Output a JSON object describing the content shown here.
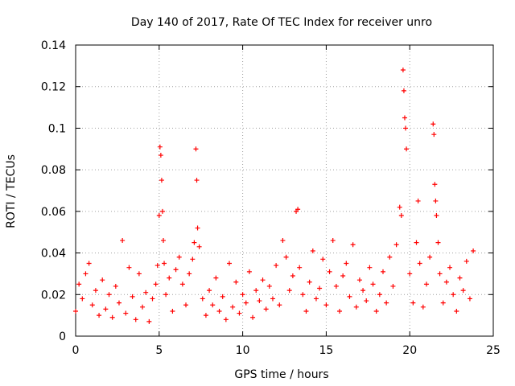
{
  "chart_data": {
    "type": "scatter",
    "title": "Day 140 of 2017, Rate Of TEC Index for receiver unro",
    "xlabel": "GPS time / hours",
    "ylabel": "ROTI / TECUs",
    "xlim": [
      0,
      25
    ],
    "ylim": [
      0,
      0.14
    ],
    "xticks": [
      0,
      5,
      10,
      15,
      20,
      25
    ],
    "xtick_labels": [
      "0",
      "5",
      "10",
      "15",
      "20",
      "25"
    ],
    "yticks": [
      0,
      0.02,
      0.04,
      0.06,
      0.08,
      0.1,
      0.12,
      0.14
    ],
    "ytick_labels": [
      "0",
      "0.02",
      "0.04",
      "0.06",
      "0.08",
      "0.1",
      "0.12",
      "0.14"
    ],
    "grid": true,
    "marker": "plus",
    "color": "#ff0000",
    "series": [
      {
        "x": [
          0.0,
          0.2,
          0.4,
          0.6,
          0.8,
          1.0,
          1.2,
          1.4,
          1.6,
          1.8,
          2.0,
          2.2,
          2.4,
          2.6,
          2.8,
          3.0,
          3.2,
          3.4,
          3.6,
          3.8,
          4.0,
          4.2,
          4.4,
          4.6,
          4.8,
          4.9,
          5.0,
          5.05,
          5.1,
          5.15,
          5.2,
          5.25,
          5.3,
          5.4,
          5.6,
          5.8,
          6.0,
          6.2,
          6.4,
          6.6,
          6.8,
          7.0,
          7.1,
          7.2,
          7.25,
          7.3,
          7.4,
          7.6,
          7.8,
          8.0,
          8.2,
          8.4,
          8.6,
          8.8,
          9.0,
          9.2,
          9.4,
          9.6,
          9.8,
          10.0,
          10.2,
          10.4,
          10.6,
          10.8,
          11.0,
          11.2,
          11.4,
          11.6,
          11.8,
          12.0,
          12.2,
          12.4,
          12.6,
          12.8,
          13.0,
          13.2,
          13.3,
          13.4,
          13.6,
          13.8,
          14.0,
          14.2,
          14.4,
          14.6,
          14.8,
          15.0,
          15.2,
          15.4,
          15.6,
          15.8,
          16.0,
          16.2,
          16.4,
          16.6,
          16.8,
          17.0,
          17.2,
          17.4,
          17.6,
          17.8,
          18.0,
          18.2,
          18.4,
          18.6,
          18.8,
          19.0,
          19.2,
          19.4,
          19.5,
          19.6,
          19.65,
          19.7,
          19.75,
          19.8,
          20.0,
          20.2,
          20.4,
          20.5,
          20.6,
          20.8,
          21.0,
          21.2,
          21.4,
          21.45,
          21.5,
          21.55,
          21.6,
          21.7,
          21.8,
          22.0,
          22.2,
          22.4,
          22.6,
          22.8,
          23.0,
          23.2,
          23.4,
          23.6,
          23.8
        ],
        "y": [
          0.012,
          0.025,
          0.018,
          0.03,
          0.035,
          0.015,
          0.022,
          0.01,
          0.027,
          0.013,
          0.02,
          0.009,
          0.024,
          0.016,
          0.046,
          0.011,
          0.033,
          0.019,
          0.008,
          0.03,
          0.014,
          0.021,
          0.007,
          0.018,
          0.025,
          0.034,
          0.058,
          0.091,
          0.087,
          0.075,
          0.06,
          0.046,
          0.035,
          0.02,
          0.028,
          0.012,
          0.032,
          0.038,
          0.025,
          0.015,
          0.03,
          0.037,
          0.045,
          0.09,
          0.075,
          0.052,
          0.043,
          0.018,
          0.01,
          0.022,
          0.015,
          0.028,
          0.012,
          0.019,
          0.008,
          0.035,
          0.014,
          0.026,
          0.011,
          0.02,
          0.016,
          0.031,
          0.009,
          0.022,
          0.017,
          0.027,
          0.013,
          0.024,
          0.018,
          0.034,
          0.015,
          0.046,
          0.038,
          0.022,
          0.029,
          0.06,
          0.061,
          0.033,
          0.02,
          0.012,
          0.026,
          0.041,
          0.018,
          0.023,
          0.037,
          0.015,
          0.031,
          0.046,
          0.024,
          0.012,
          0.029,
          0.035,
          0.019,
          0.044,
          0.014,
          0.027,
          0.022,
          0.017,
          0.033,
          0.025,
          0.012,
          0.02,
          0.031,
          0.016,
          0.038,
          0.024,
          0.044,
          0.062,
          0.058,
          0.128,
          0.118,
          0.105,
          0.1,
          0.09,
          0.03,
          0.016,
          0.045,
          0.065,
          0.035,
          0.014,
          0.025,
          0.038,
          0.102,
          0.097,
          0.073,
          0.065,
          0.058,
          0.045,
          0.03,
          0.016,
          0.026,
          0.033,
          0.02,
          0.012,
          0.028,
          0.022,
          0.036,
          0.018,
          0.041
        ]
      }
    ]
  }
}
